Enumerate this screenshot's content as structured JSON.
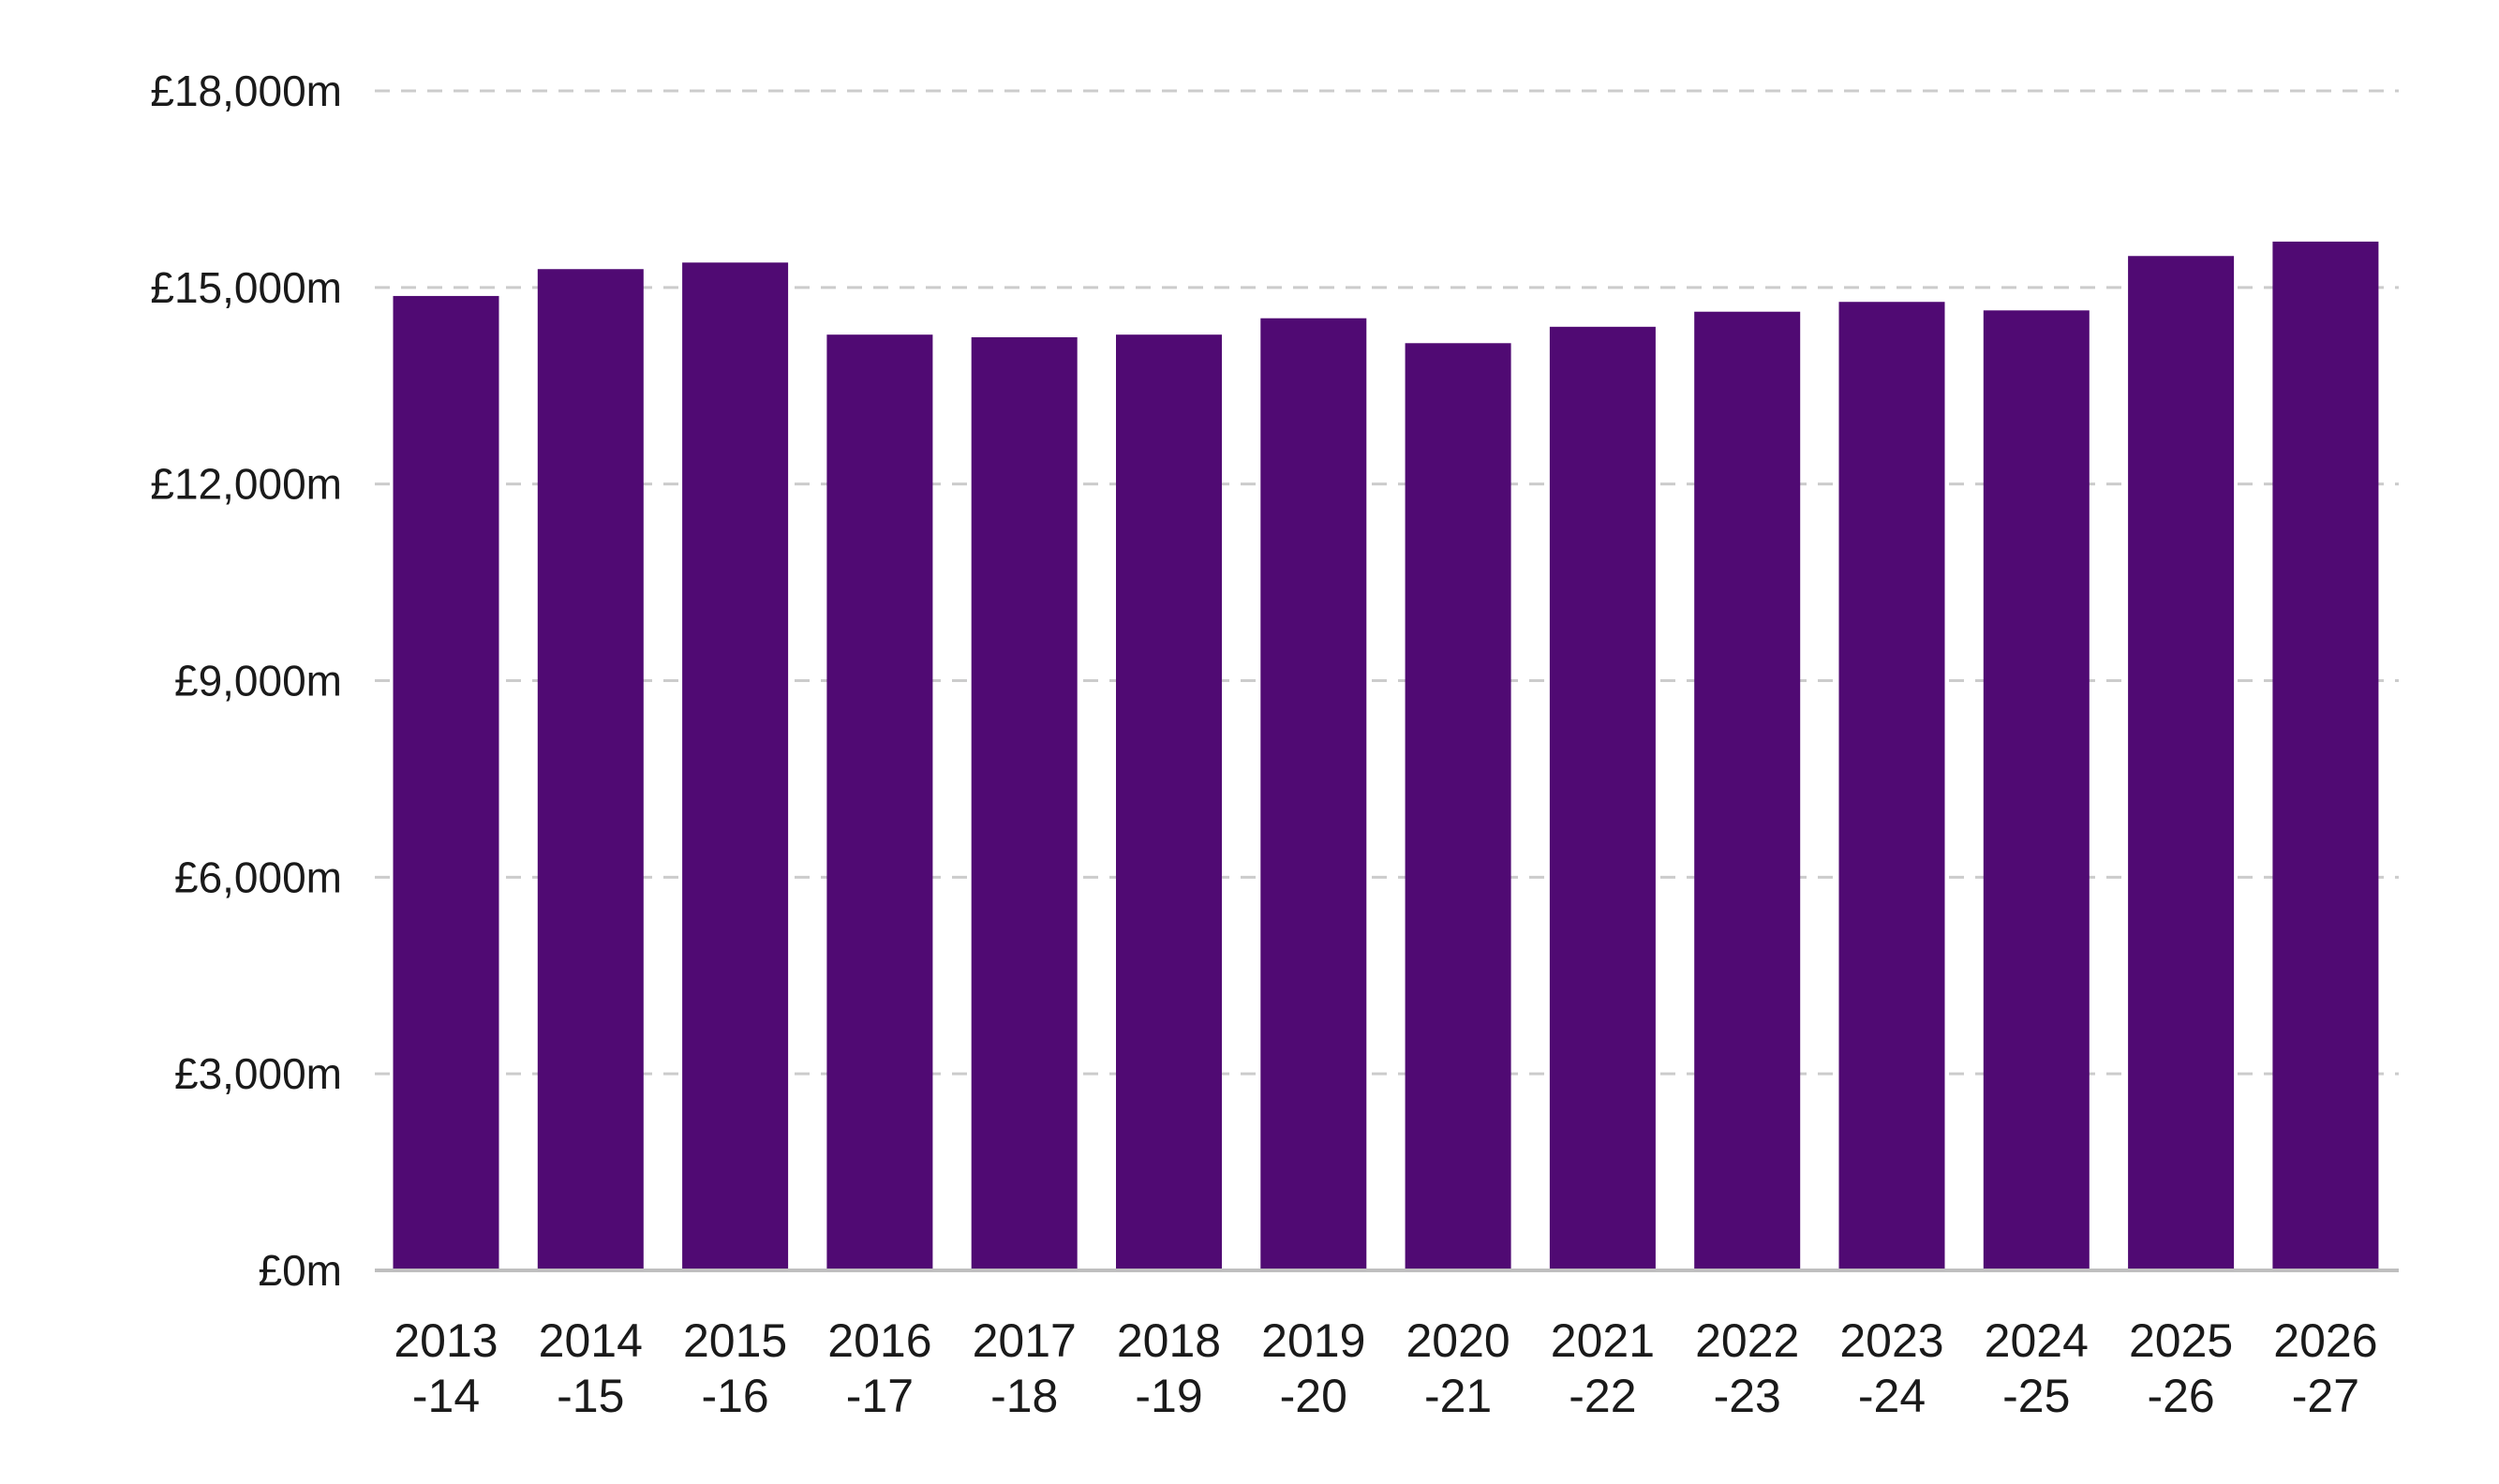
{
  "chart_data": {
    "type": "bar",
    "title": "",
    "xlabel": "",
    "ylabel": "",
    "categories": [
      [
        "2013",
        "-14"
      ],
      [
        "2014",
        "-15"
      ],
      [
        "2015",
        "-16"
      ],
      [
        "2016",
        "-17"
      ],
      [
        "2017",
        "-18"
      ],
      [
        "2018",
        "-19"
      ],
      [
        "2019",
        "-20"
      ],
      [
        "2020",
        "-21"
      ],
      [
        "2021",
        "-22"
      ],
      [
        "2022",
        "-23"
      ],
      [
        "2023",
        "-24"
      ],
      [
        "2024",
        "-25"
      ],
      [
        "2025",
        "-26"
      ],
      [
        "2026",
        "-27"
      ]
    ],
    "values": [
      14870,
      15280,
      15380,
      14280,
      14240,
      14280,
      14530,
      14150,
      14400,
      14630,
      14780,
      14650,
      15480,
      15700
    ],
    "ylim": [
      0,
      18000
    ],
    "yticks": [
      0,
      3000,
      6000,
      9000,
      12000,
      15000,
      18000
    ],
    "ytick_labels": [
      "£0m",
      "£3,000m",
      "£6,000m",
      "£9,000m",
      "£12,000m",
      "£15,000m",
      "£18,000m"
    ],
    "grid": true,
    "legend": "none",
    "colors": {
      "bar": "#500a73",
      "grid": "#cccccc",
      "axis": "#bfbfbf",
      "text": "#1a1a1a"
    }
  }
}
